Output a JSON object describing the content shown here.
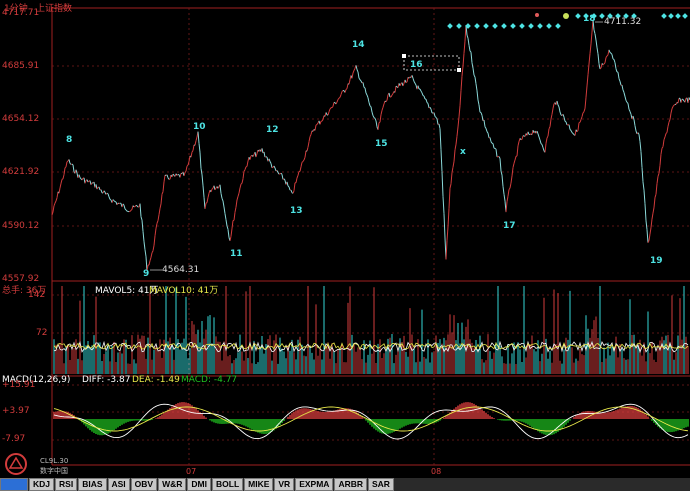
{
  "header": {
    "period": "1分钟",
    "index_name": "上证指数"
  },
  "price_axis": [
    "4717.71",
    "4685.91",
    "4654.12",
    "4621.92",
    "4590.12",
    "4557.92"
  ],
  "price_labels": {
    "low_marker": "4564.31",
    "high_marker": "4711.32"
  },
  "wave_annotations": [
    "8",
    "9",
    "10",
    "11",
    "12",
    "13",
    "14",
    "15",
    "16",
    "x",
    "17",
    "18",
    "19"
  ],
  "volume_panel": {
    "title": "总手: 36万",
    "ma5": "MAVOL5: 41万",
    "ma10": "MAVOL10: 41万",
    "axis": [
      "142",
      "72"
    ]
  },
  "macd_panel": {
    "title": "MACD(12,26,9)",
    "diff": "DIFF: -3.87",
    "dea": "DEA: -1.49",
    "macd": "MACD: -4.77",
    "axis": [
      "+15.91",
      "+3.97",
      "-7.97"
    ]
  },
  "time_axis": [
    "07",
    "08"
  ],
  "logo_text": {
    "line1": "CL9L.30",
    "line2": "数字中国"
  },
  "indicator_tabs": [
    "KDJ",
    "RSI",
    "BIAS",
    "ASI",
    "OBV",
    "W&R",
    "DMI",
    "BOLL",
    "MIKE",
    "VR",
    "EXPMA",
    "ARBR",
    "SAR"
  ],
  "colors": {
    "background": "#000000",
    "up": "#d23c3c",
    "down": "#35d6d6",
    "grid": "#7a1c1c",
    "label": "#4de3e3",
    "macd_pos": "#e04040",
    "macd_neg": "#20c020"
  }
}
